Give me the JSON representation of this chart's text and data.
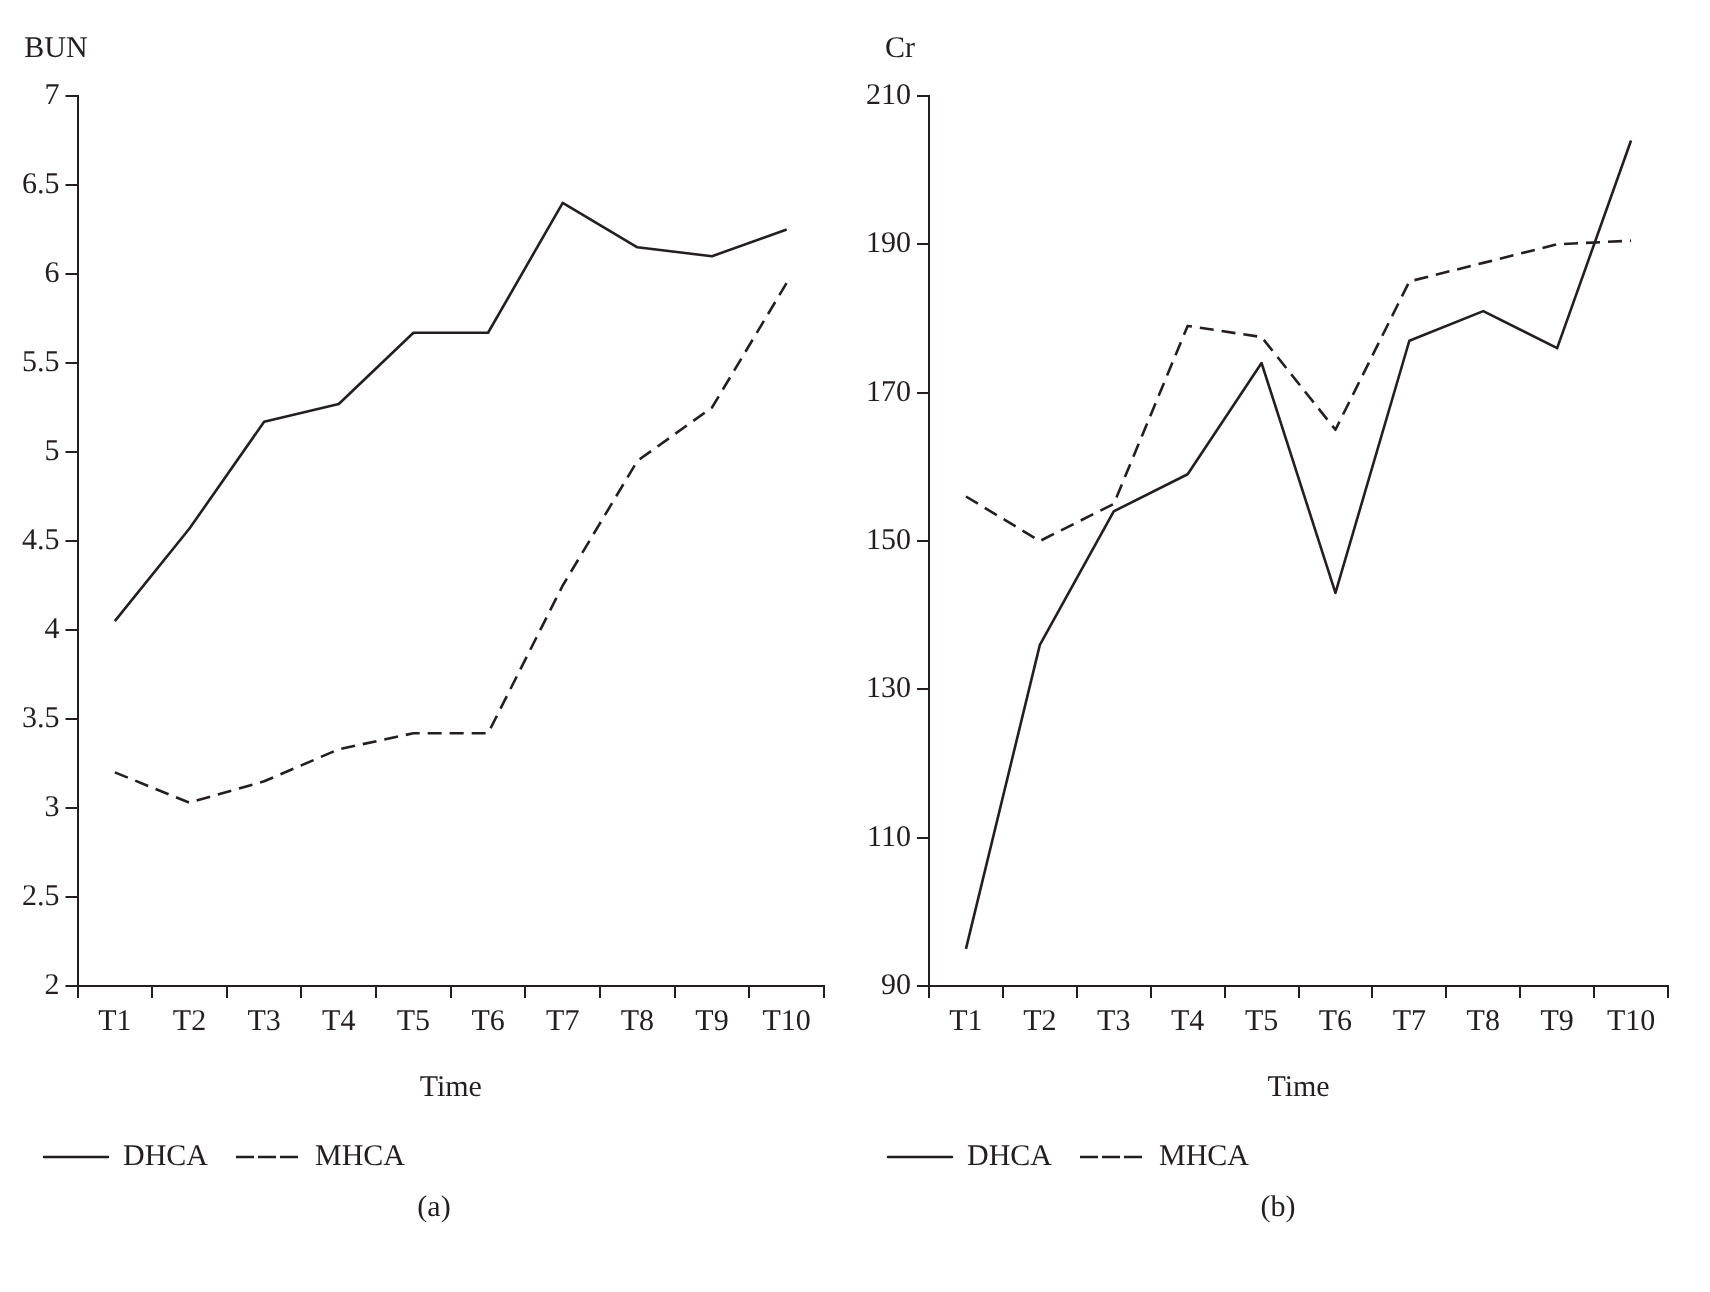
{
  "chart_data": [
    {
      "type": "line",
      "ylabel": "BUN",
      "xlabel": "Time",
      "categories": [
        "T1",
        "T2",
        "T3",
        "T4",
        "T5",
        "T6",
        "T7",
        "T8",
        "T9",
        "T10"
      ],
      "series": [
        {
          "name": "DHCA",
          "color": "#231f20",
          "line_style": "solid",
          "values": [
            4.05,
            4.57,
            5.17,
            5.27,
            5.67,
            5.67,
            6.4,
            6.15,
            6.1,
            6.25
          ]
        },
        {
          "name": "MHCA",
          "color": "#231f20",
          "line_style": "dashed",
          "values": [
            3.2,
            3.03,
            3.15,
            3.33,
            3.42,
            3.42,
            4.25,
            4.95,
            5.25,
            5.95
          ]
        }
      ],
      "ylim": [
        2,
        7
      ],
      "yticks": [
        2,
        2.5,
        3,
        3.5,
        4,
        4.5,
        5,
        5.5,
        6,
        6.5,
        7
      ],
      "grid": false,
      "legend": "bottom",
      "marker": "none",
      "annotations": [
        "(a)"
      ]
    },
    {
      "type": "line",
      "ylabel": "Cr",
      "xlabel": "Time",
      "categories": [
        "T1",
        "T2",
        "T3",
        "T4",
        "T5",
        "T6",
        "T7",
        "T8",
        "T9",
        "T10"
      ],
      "series": [
        {
          "name": "DHCA",
          "color": "#231f20",
          "line_style": "solid",
          "values": [
            95,
            136,
            154,
            159,
            174,
            143,
            177,
            181,
            176,
            204
          ]
        },
        {
          "name": "MHCA",
          "color": "#231f20",
          "line_style": "dashed",
          "values": [
            156,
            150,
            155,
            179,
            177.5,
            165,
            185,
            187.5,
            190,
            190.5
          ]
        }
      ],
      "ylim": [
        90,
        210
      ],
      "yticks": [
        90,
        110,
        130,
        150,
        170,
        190,
        210
      ],
      "grid": false,
      "legend": "bottom",
      "marker": "none",
      "annotations": [
        "(b)"
      ]
    }
  ]
}
